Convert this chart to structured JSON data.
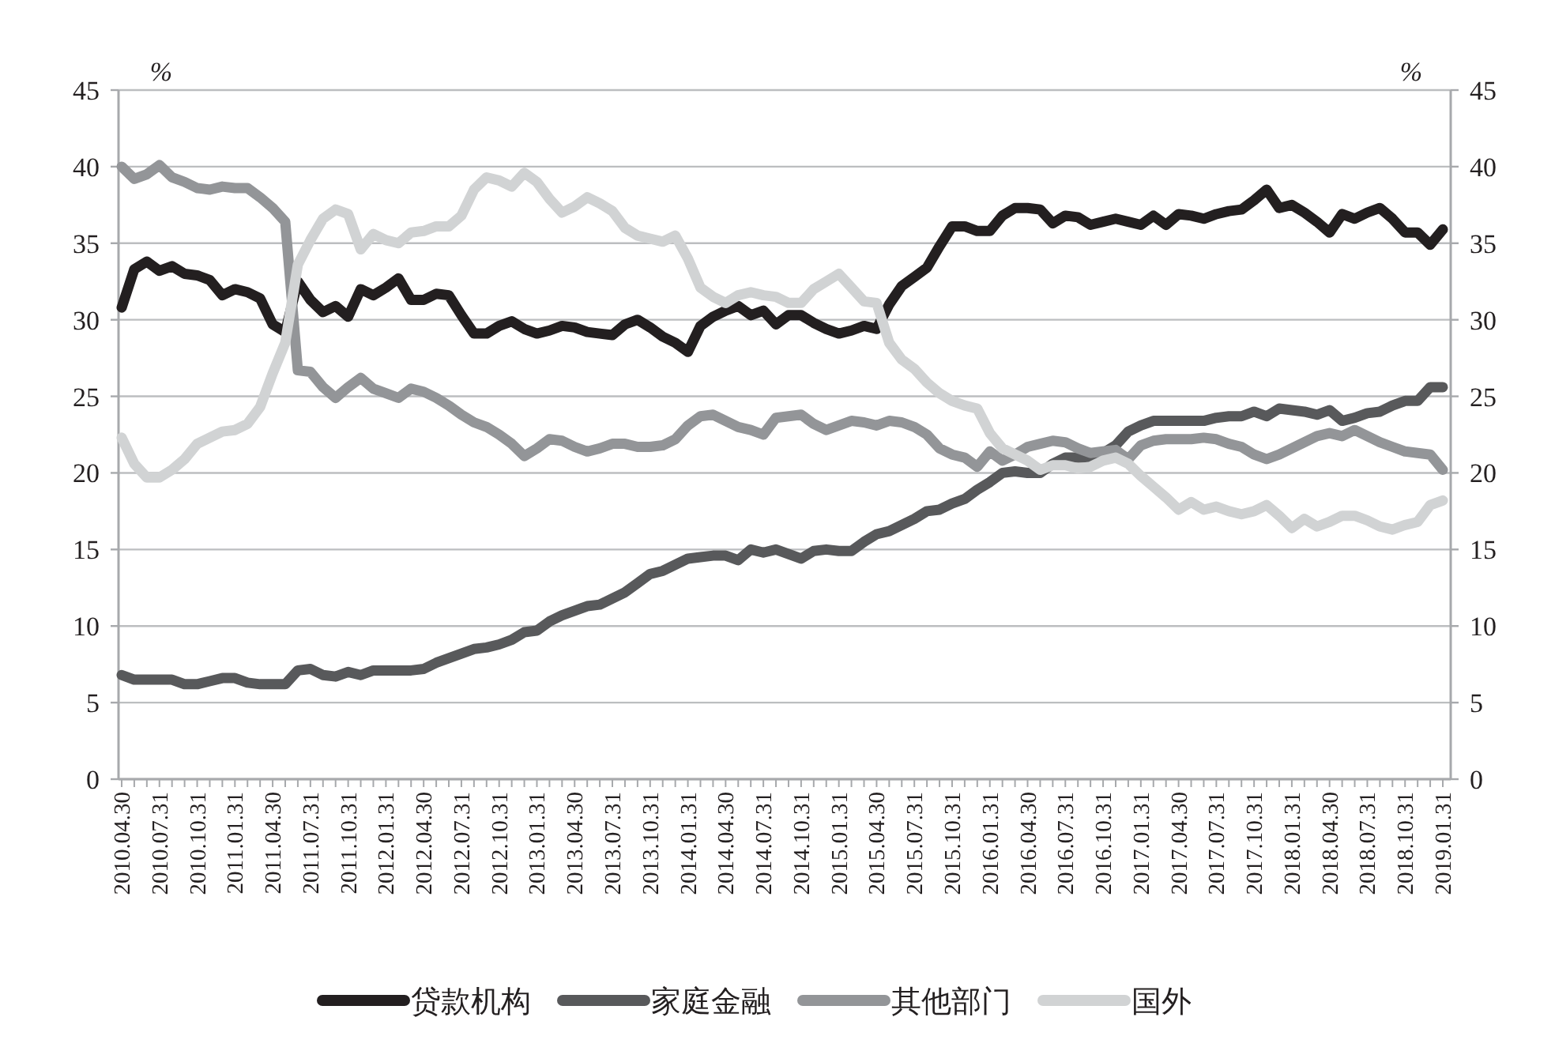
{
  "chart_data": {
    "type": "line",
    "ylabel": "%",
    "y2label": "%",
    "ylim": [
      0,
      45
    ],
    "yticks": [
      0,
      5,
      10,
      15,
      20,
      25,
      30,
      35,
      40,
      45
    ],
    "y2lim": [
      0,
      45
    ],
    "y2ticks": [
      0,
      5,
      10,
      15,
      20,
      25,
      30,
      35,
      40,
      45
    ],
    "grid": "y",
    "legend": "bottom",
    "categories": [
      "2010.04.30",
      null,
      null,
      "2010.07.31",
      null,
      null,
      "2010.10.31",
      null,
      null,
      "2011.01.31",
      null,
      null,
      "2011.04.30",
      null,
      null,
      "2011.07.31",
      null,
      null,
      "2011.10.31",
      null,
      null,
      "2012.01.31",
      null,
      null,
      "2012.04.30",
      null,
      null,
      "2012.07.31",
      null,
      null,
      "2012.10.31",
      null,
      null,
      "2013.01.31",
      null,
      null,
      "2013.04.30",
      null,
      null,
      "2013.07.31",
      null,
      null,
      "2013.10.31",
      null,
      null,
      "2014.01.31",
      null,
      null,
      "2014.04.30",
      null,
      null,
      "2014.07.31",
      null,
      null,
      "2014.10.31",
      null,
      null,
      "2015.01.31",
      null,
      null,
      "2015.04.30",
      null,
      null,
      "2015.07.31",
      null,
      null,
      "2015.10.31",
      null,
      null,
      "2016.01.31",
      null,
      null,
      "2016.04.30",
      null,
      null,
      "2016.07.31",
      null,
      null,
      "2016.10.31",
      null,
      null,
      "2017.01.31",
      null,
      null,
      "2017.04.30",
      null,
      null,
      "2017.07.31",
      null,
      null,
      "2017.10.31",
      null,
      null,
      "2018.01.31",
      null,
      null,
      "2018.04.30",
      null,
      null,
      "2018.07.31",
      null,
      null,
      "2018.10.31",
      null,
      null,
      "2019.01.31"
    ],
    "series": [
      {
        "name": "贷款机构",
        "color": "#231f20",
        "values": [
          30.8,
          33.3,
          33.8,
          33.2,
          33.5,
          33.0,
          32.9,
          32.6,
          31.6,
          32.0,
          31.8,
          31.4,
          29.7,
          29.2,
          32.5,
          31.3,
          30.5,
          30.9,
          30.2,
          32.0,
          31.6,
          32.1,
          32.7,
          31.3,
          31.3,
          31.7,
          31.6,
          30.3,
          29.1,
          29.1,
          29.6,
          29.9,
          29.4,
          29.1,
          29.3,
          29.6,
          29.5,
          29.2,
          29.1,
          29.0,
          29.7,
          30.0,
          29.5,
          28.9,
          28.5,
          27.9,
          29.6,
          30.2,
          30.6,
          30.9,
          30.3,
          30.6,
          29.7,
          30.3,
          30.3,
          29.8,
          29.4,
          29.1,
          29.3,
          29.6,
          29.4,
          31.0,
          32.2,
          32.8,
          33.4,
          34.8,
          36.1,
          36.1,
          35.8,
          35.8,
          36.8,
          37.3,
          37.3,
          37.2,
          36.3,
          36.8,
          36.7,
          36.2,
          36.4,
          36.6,
          36.4,
          36.2,
          36.8,
          36.2,
          36.9,
          36.8,
          36.6,
          36.9,
          37.1,
          37.2,
          37.8,
          38.5,
          37.3,
          37.5,
          37.0,
          36.4,
          35.7,
          36.9,
          36.6,
          37.0,
          37.3,
          36.6,
          35.7,
          35.7,
          34.9,
          35.9
        ]
      },
      {
        "name": "家庭金融",
        "color": "#58595b",
        "values": [
          6.8,
          6.5,
          6.5,
          6.5,
          6.5,
          6.2,
          6.2,
          6.4,
          6.6,
          6.6,
          6.3,
          6.2,
          6.2,
          6.2,
          7.1,
          7.2,
          6.8,
          6.7,
          7.0,
          6.8,
          7.1,
          7.1,
          7.1,
          7.1,
          7.2,
          7.6,
          7.9,
          8.2,
          8.5,
          8.6,
          8.8,
          9.1,
          9.6,
          9.7,
          10.3,
          10.7,
          11.0,
          11.3,
          11.4,
          11.8,
          12.2,
          12.8,
          13.4,
          13.6,
          14.0,
          14.4,
          14.5,
          14.6,
          14.6,
          14.3,
          15.0,
          14.8,
          15.0,
          14.7,
          14.4,
          14.9,
          15.0,
          14.9,
          14.9,
          15.5,
          16.0,
          16.2,
          16.6,
          17.0,
          17.5,
          17.6,
          18.0,
          18.3,
          18.9,
          19.4,
          20.0,
          20.1,
          20.0,
          20.0,
          20.6,
          21.0,
          21.0,
          21.0,
          21.3,
          21.8,
          22.7,
          23.1,
          23.4,
          23.4,
          23.4,
          23.4,
          23.4,
          23.6,
          23.7,
          23.7,
          24.0,
          23.7,
          24.2,
          24.1,
          24.0,
          23.8,
          24.1,
          23.4,
          23.6,
          23.9,
          24.0,
          24.4,
          24.7,
          24.7,
          25.6,
          25.6
        ]
      },
      {
        "name": "其他部门",
        "color": "#939598",
        "values": [
          40.0,
          39.2,
          39.5,
          40.1,
          39.3,
          39.0,
          38.6,
          38.5,
          38.7,
          38.6,
          38.6,
          38.0,
          37.3,
          36.4,
          26.7,
          26.6,
          25.6,
          24.9,
          25.6,
          26.2,
          25.5,
          25.2,
          24.9,
          25.5,
          25.3,
          24.9,
          24.4,
          23.8,
          23.3,
          23.0,
          22.5,
          21.9,
          21.1,
          21.6,
          22.2,
          22.1,
          21.7,
          21.4,
          21.6,
          21.9,
          21.9,
          21.7,
          21.7,
          21.8,
          22.2,
          23.1,
          23.7,
          23.8,
          23.4,
          23.0,
          22.8,
          22.5,
          23.6,
          23.7,
          23.8,
          23.2,
          22.8,
          23.1,
          23.4,
          23.3,
          23.1,
          23.4,
          23.3,
          23.0,
          22.5,
          21.6,
          21.2,
          21.0,
          20.4,
          21.4,
          20.8,
          21.2,
          21.7,
          21.9,
          22.1,
          22.0,
          21.6,
          21.3,
          21.4,
          21.5,
          20.9,
          21.8,
          22.1,
          22.2,
          22.2,
          22.2,
          22.3,
          22.2,
          21.9,
          21.7,
          21.2,
          20.9,
          21.2,
          21.6,
          22.0,
          22.4,
          22.6,
          22.4,
          22.8,
          22.4,
          22.0,
          21.7,
          21.4,
          21.3,
          21.2,
          20.2
        ]
      },
      {
        "name": "国外",
        "color": "#d1d3d4",
        "values": [
          22.3,
          20.6,
          19.7,
          19.7,
          20.2,
          20.9,
          21.9,
          22.3,
          22.7,
          22.8,
          23.2,
          24.3,
          26.5,
          28.5,
          33.6,
          35.2,
          36.6,
          37.2,
          36.9,
          34.6,
          35.6,
          35.2,
          35.0,
          35.7,
          35.8,
          36.1,
          36.1,
          36.8,
          38.5,
          39.3,
          39.1,
          38.7,
          39.6,
          39.0,
          37.9,
          37.0,
          37.4,
          38.0,
          37.6,
          37.1,
          36.0,
          35.5,
          35.3,
          35.1,
          35.5,
          34.0,
          32.1,
          31.5,
          31.1,
          31.6,
          31.8,
          31.6,
          31.5,
          31.1,
          31.1,
          32.0,
          32.5,
          33.0,
          32.1,
          31.2,
          31.1,
          28.5,
          27.4,
          26.8,
          25.9,
          25.2,
          24.7,
          24.4,
          24.2,
          22.6,
          21.6,
          21.2,
          20.8,
          20.2,
          20.5,
          20.5,
          20.3,
          20.4,
          20.8,
          21.0,
          20.6,
          19.8,
          19.1,
          18.4,
          17.6,
          18.1,
          17.6,
          17.8,
          17.5,
          17.3,
          17.5,
          17.9,
          17.2,
          16.4,
          17.0,
          16.5,
          16.8,
          17.2,
          17.2,
          16.9,
          16.5,
          16.3,
          16.6,
          16.8,
          17.9,
          18.2
        ]
      }
    ]
  }
}
